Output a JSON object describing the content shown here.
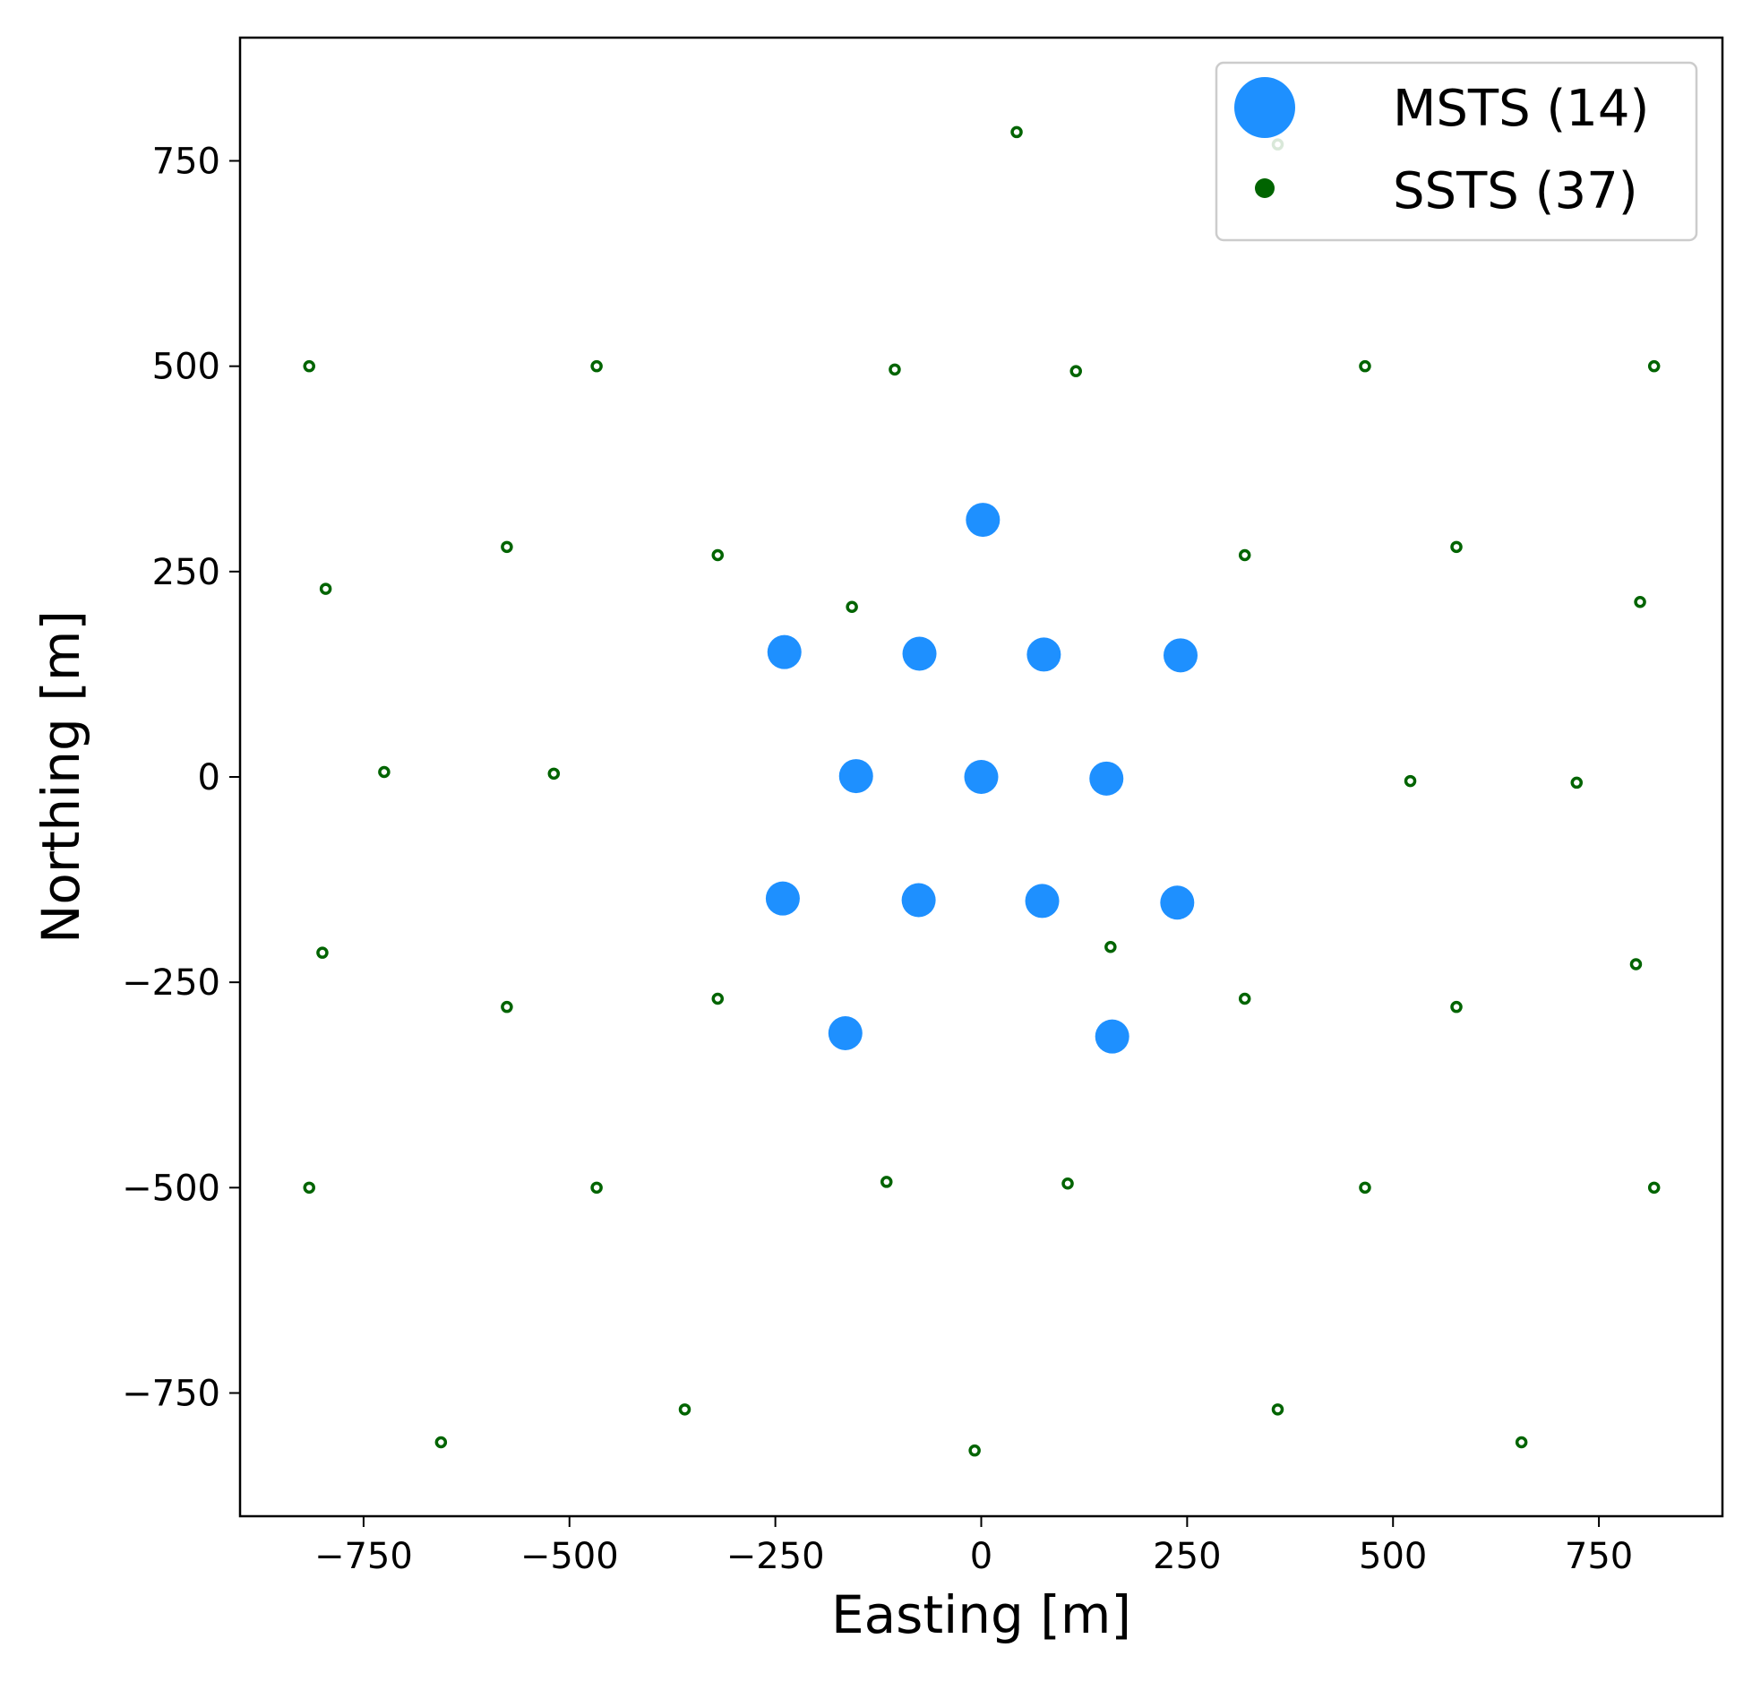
{
  "chart_data": {
    "type": "scatter",
    "xlabel": "Easting [m]",
    "ylabel": "Northing [m]",
    "xlim": [
      -900,
      900
    ],
    "ylim": [
      -900,
      900
    ],
    "xticks": [
      -750,
      -500,
      -250,
      0,
      250,
      500,
      750
    ],
    "yticks": [
      -750,
      -500,
      -250,
      0,
      250,
      500,
      750
    ],
    "xtick_labels": [
      "−750",
      "−500",
      "−250",
      "0",
      "250",
      "500",
      "750"
    ],
    "ytick_labels": [
      "−750",
      "−500",
      "−250",
      "0",
      "250",
      "500",
      "750"
    ],
    "grid": false,
    "legend_position": "top-right",
    "series": [
      {
        "name": "MSTS (14)",
        "color": "#1e90ff",
        "marker": "filled-large",
        "points": [
          [
            2,
            313
          ],
          [
            -239,
            152
          ],
          [
            -75,
            150
          ],
          [
            76,
            149
          ],
          [
            242,
            148
          ],
          [
            -152,
            1
          ],
          [
            0,
            0
          ],
          [
            152,
            -2
          ],
          [
            -241,
            -148
          ],
          [
            -76,
            -150
          ],
          [
            74,
            -151
          ],
          [
            238,
            -153
          ],
          [
            -165,
            -312
          ],
          [
            159,
            -316
          ]
        ]
      },
      {
        "name": "SSTS (37)",
        "color": "#006400",
        "marker": "open-small",
        "points": [
          [
            43,
            785
          ],
          [
            360,
            770
          ],
          [
            -816,
            500
          ],
          [
            -467,
            500
          ],
          [
            -105,
            496
          ],
          [
            115,
            494
          ],
          [
            466,
            500
          ],
          [
            817,
            500
          ],
          [
            -576,
            280
          ],
          [
            -320,
            270
          ],
          [
            320,
            270
          ],
          [
            577,
            280
          ],
          [
            -796,
            229
          ],
          [
            -157,
            207
          ],
          [
            800,
            213
          ],
          [
            -725,
            6
          ],
          [
            -519,
            4
          ],
          [
            521,
            -5
          ],
          [
            723,
            -7
          ],
          [
            157,
            -207
          ],
          [
            -800,
            -214
          ],
          [
            795,
            -228
          ],
          [
            -576,
            -280
          ],
          [
            -320,
            -270
          ],
          [
            320,
            -270
          ],
          [
            577,
            -280
          ],
          [
            -816,
            -500
          ],
          [
            -467,
            -500
          ],
          [
            -115,
            -493
          ],
          [
            105,
            -495
          ],
          [
            466,
            -500
          ],
          [
            817,
            -500
          ],
          [
            -360,
            -770
          ],
          [
            360,
            -770
          ],
          [
            -656,
            -810
          ],
          [
            656,
            -810
          ],
          [
            -8,
            -820
          ]
        ]
      }
    ]
  }
}
